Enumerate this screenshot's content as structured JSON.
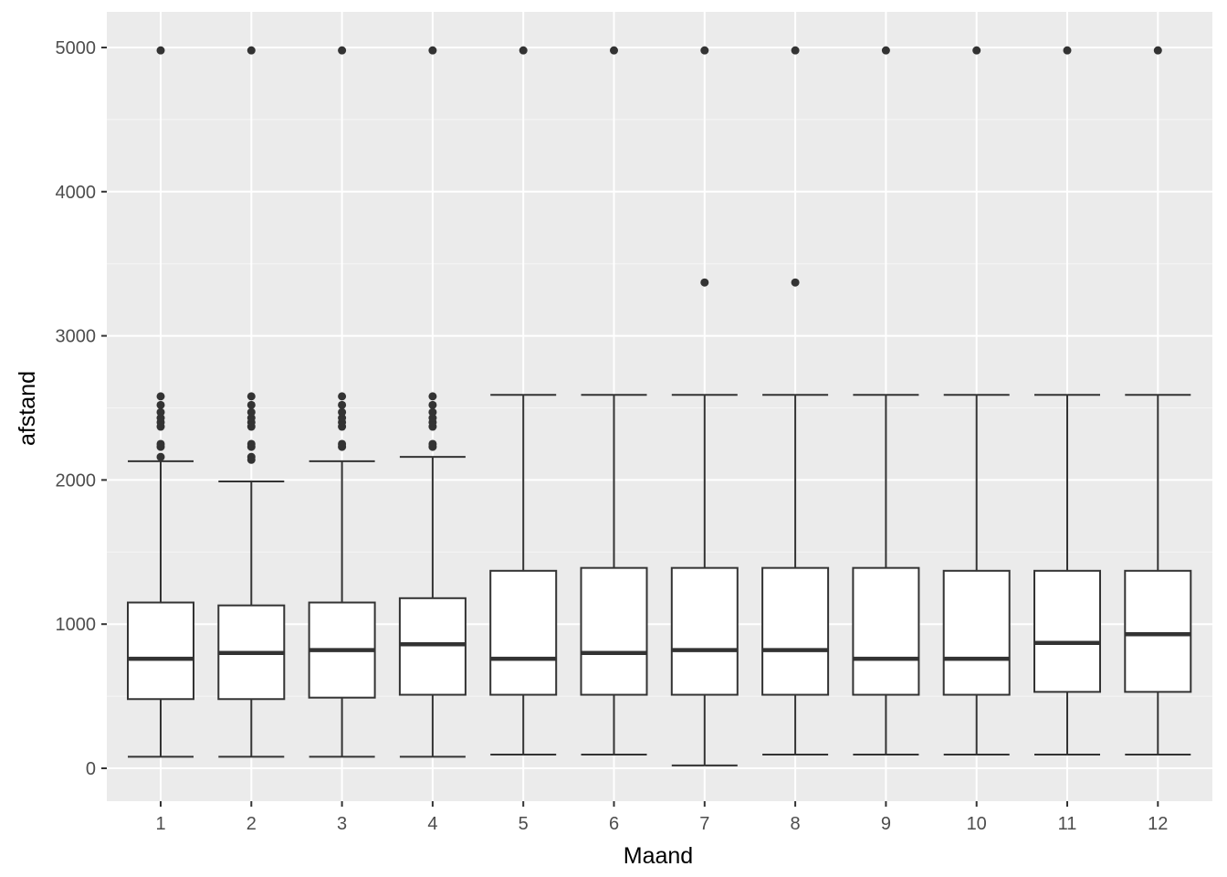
{
  "chart_data": {
    "type": "boxplot",
    "title": "",
    "xlabel": "Maand",
    "ylabel": "afstand",
    "ylim": [
      -220,
      5240
    ],
    "yticks": [
      0,
      1000,
      2000,
      3000,
      4000,
      5000
    ],
    "y_minor_ticks": [
      500,
      1500,
      2500,
      3500,
      4500
    ],
    "grid": true,
    "background": "#ebebeb",
    "categories": [
      "1",
      "2",
      "3",
      "4",
      "5",
      "6",
      "7",
      "8",
      "9",
      "10",
      "11",
      "12"
    ],
    "boxes": [
      {
        "month": "1",
        "whisker_low": 80,
        "q1": 480,
        "median": 760,
        "q3": 1150,
        "whisker_high": 2130,
        "outliers": [
          2160,
          2230,
          2250,
          2370,
          2400,
          2430,
          2470,
          2520,
          2580,
          4980
        ]
      },
      {
        "month": "2",
        "whisker_low": 80,
        "q1": 480,
        "median": 800,
        "q3": 1130,
        "whisker_high": 1990,
        "outliers": [
          2140,
          2160,
          2230,
          2250,
          2370,
          2400,
          2430,
          2470,
          2520,
          2580,
          4980
        ]
      },
      {
        "month": "3",
        "whisker_low": 80,
        "q1": 490,
        "median": 820,
        "q3": 1150,
        "whisker_high": 2130,
        "outliers": [
          2230,
          2250,
          2370,
          2400,
          2430,
          2470,
          2520,
          2580,
          4980
        ]
      },
      {
        "month": "4",
        "whisker_low": 80,
        "q1": 510,
        "median": 860,
        "q3": 1180,
        "whisker_high": 2160,
        "outliers": [
          2230,
          2250,
          2370,
          2400,
          2430,
          2470,
          2520,
          2580,
          4980
        ]
      },
      {
        "month": "5",
        "whisker_low": 95,
        "q1": 510,
        "median": 760,
        "q3": 1370,
        "whisker_high": 2590,
        "outliers": [
          4980
        ]
      },
      {
        "month": "6",
        "whisker_low": 95,
        "q1": 510,
        "median": 800,
        "q3": 1390,
        "whisker_high": 2590,
        "outliers": [
          4980
        ]
      },
      {
        "month": "7",
        "whisker_low": 20,
        "q1": 510,
        "median": 820,
        "q3": 1390,
        "whisker_high": 2590,
        "outliers": [
          3370,
          4980
        ]
      },
      {
        "month": "8",
        "whisker_low": 95,
        "q1": 510,
        "median": 820,
        "q3": 1390,
        "whisker_high": 2590,
        "outliers": [
          3370,
          4980
        ]
      },
      {
        "month": "9",
        "whisker_low": 95,
        "q1": 510,
        "median": 760,
        "q3": 1390,
        "whisker_high": 2590,
        "outliers": [
          4980
        ]
      },
      {
        "month": "10",
        "whisker_low": 95,
        "q1": 510,
        "median": 760,
        "q3": 1370,
        "whisker_high": 2590,
        "outliers": [
          4980
        ]
      },
      {
        "month": "11",
        "whisker_low": 95,
        "q1": 530,
        "median": 870,
        "q3": 1370,
        "whisker_high": 2590,
        "outliers": [
          4980
        ]
      },
      {
        "month": "12",
        "whisker_low": 95,
        "q1": 530,
        "median": 930,
        "q3": 1370,
        "whisker_high": 2590,
        "outliers": [
          4980
        ]
      }
    ],
    "colors": {
      "panel": "#ebebeb",
      "grid_major": "#ffffff",
      "box_fill": "#ffffff",
      "box_line": "#333333",
      "outlier": "#333333",
      "tick_text": "#4d4d4d"
    }
  }
}
